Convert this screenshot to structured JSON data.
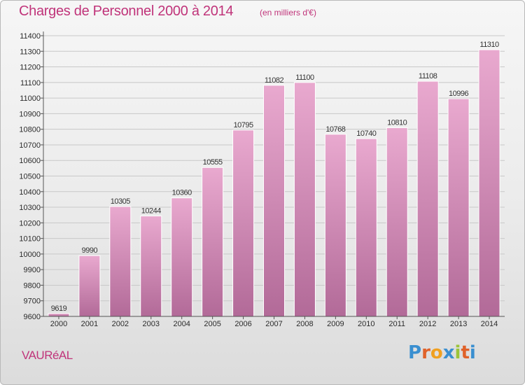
{
  "header": {
    "title": "Charges de Personnel 2000 à 2014",
    "subtitle": "(en milliers d'€)"
  },
  "footer": {
    "place": "VAURéAL",
    "logo": "Proxiti"
  },
  "colors": {
    "accent": "#c0347a",
    "bar_top": "#e9a9cf",
    "bar_bottom": "#b26a98"
  },
  "chart_data": {
    "type": "bar",
    "categories": [
      "2000",
      "2001",
      "2002",
      "2003",
      "2004",
      "2005",
      "2006",
      "2007",
      "2008",
      "2009",
      "2010",
      "2011",
      "2012",
      "2013",
      "2014"
    ],
    "values": [
      9619,
      9990,
      10305,
      10244,
      10360,
      10555,
      10795,
      11082,
      11100,
      10768,
      10740,
      10810,
      11108,
      10996,
      11310
    ],
    "title": "Charges de Personnel 2000 à 2014",
    "subtitle": "(en milliers d'€)",
    "xlabel": "",
    "ylabel": "",
    "ylim": [
      9600,
      11400
    ],
    "yticks": [
      9600,
      9700,
      9800,
      9900,
      10000,
      10100,
      10200,
      10300,
      10400,
      10500,
      10600,
      10700,
      10800,
      10900,
      11000,
      11100,
      11200,
      11300,
      11400
    ],
    "grid": true,
    "legend": "none"
  }
}
